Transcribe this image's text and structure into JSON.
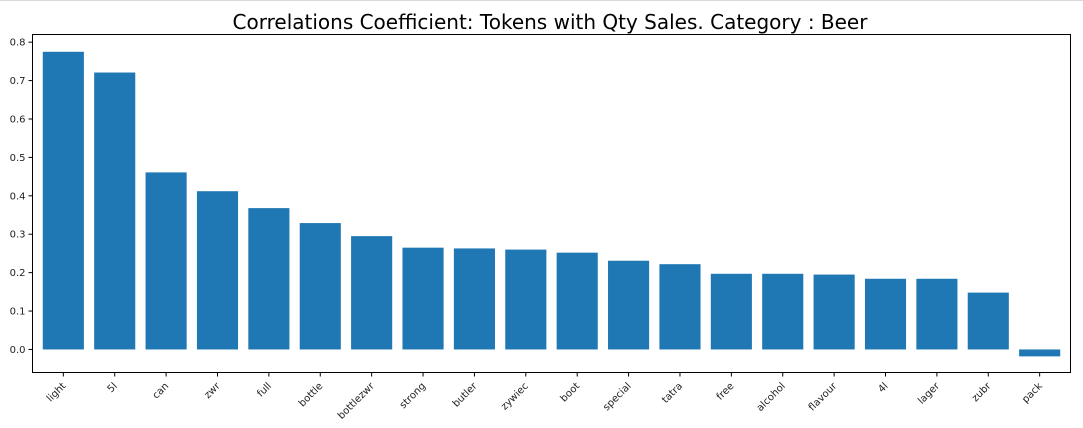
{
  "chart_data": {
    "type": "bar",
    "title": "Correlations Coefficient: Tokens with Qty Sales. Category : Beer",
    "xlabel": "",
    "ylabel": "",
    "categories": [
      "light",
      "5l",
      "can",
      "zwr",
      "full",
      "bottle",
      "bottlezwr",
      "strong",
      "butler",
      "zywiec",
      "boot",
      "special",
      "tatra",
      "free",
      "alcohol",
      "flavour",
      "4l",
      "lager",
      "zubr",
      "pack"
    ],
    "values": [
      0.775,
      0.721,
      0.461,
      0.412,
      0.368,
      0.329,
      0.295,
      0.265,
      0.263,
      0.26,
      0.252,
      0.231,
      0.222,
      0.197,
      0.197,
      0.195,
      0.184,
      0.184,
      0.148,
      -0.018
    ],
    "yticks": [
      "0.0",
      "0.1",
      "0.2",
      "0.3",
      "0.4",
      "0.5",
      "0.6",
      "0.7",
      "0.8"
    ],
    "ylim": [
      -0.06,
      0.82
    ],
    "bar_color": "#1f77b4",
    "grid": false,
    "legend": "none"
  }
}
